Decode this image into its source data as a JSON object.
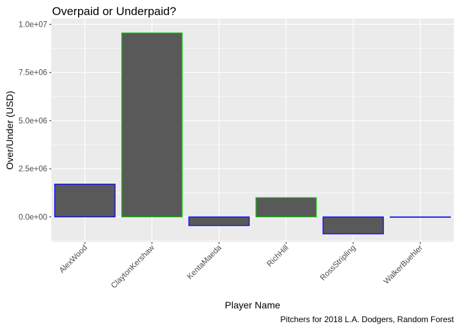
{
  "chart_data": {
    "type": "bar",
    "title": "Overpaid or Underpaid?",
    "xlabel": "Player Name",
    "ylabel": "Over/Under (USD)",
    "caption": "Pitchers for 2018 L.A. Dodgers, Random Forest",
    "categories": [
      "AlexWood",
      "ClaytonKershaw",
      "KentaMaeda",
      "RichHill",
      "RossStripling",
      "WalkerBuehler"
    ],
    "values": [
      1700000,
      9550000,
      -450000,
      1000000,
      -880000,
      0
    ],
    "bar_outline_colors": [
      "#0000ff",
      "#00cc00",
      "#0000ff",
      "#00cc00",
      "#0000ff",
      "#0000ff"
    ],
    "bar_fill_color": "#595959",
    "panel_background": "#ebebeb",
    "grid_color": "#ffffff",
    "ylim": [
      -1300000,
      10300000
    ],
    "yticks": [
      0,
      2500000,
      5000000,
      7500000,
      10000000
    ],
    "ytick_labels": [
      "0.0e+00",
      "2.5e+06",
      "5.0e+06",
      "7.5e+06",
      "1.0e+07"
    ],
    "grid": true
  }
}
